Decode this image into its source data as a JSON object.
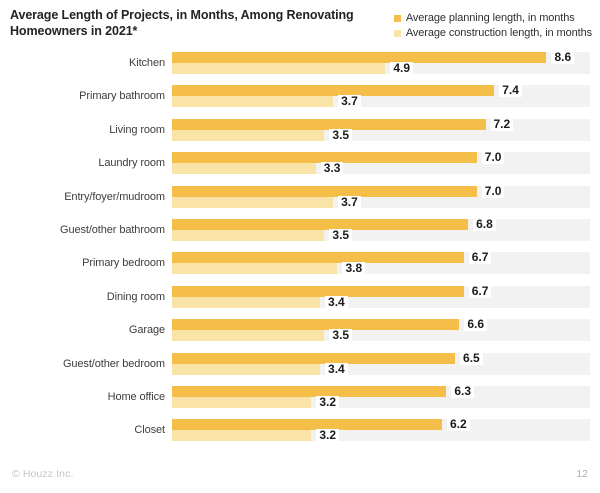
{
  "header": {
    "title_lines": [
      "Average Length of Projects, in Months, Among Renovating",
      "Homeowners in 2021*"
    ]
  },
  "legend": {
    "items": [
      {
        "label": "Average planning length, in months",
        "color": "#f4be48"
      },
      {
        "label": "Average construction length, in months",
        "color": "#fae3a6"
      }
    ]
  },
  "chart_data": {
    "type": "bar",
    "orientation": "horizontal",
    "title": "Average Length of Projects, in Months, Among Renovating Homeowners in 2021*",
    "xlabel": "",
    "ylabel": "",
    "xlim": [
      0,
      9.6
    ],
    "grid": false,
    "legend_position": "top-right",
    "value_labels": "end-of-bar, one decimal, white chip",
    "track_color": "#f2f2f2",
    "categories": [
      "Kitchen",
      "Primary bathroom",
      "Living room",
      "Laundry room",
      "Entry/foyer/mudroom",
      "Guest/other bathroom",
      "Primary bedroom",
      "Dining room",
      "Garage",
      "Guest/other bedroom",
      "Home office",
      "Closet"
    ],
    "series": [
      {
        "name": "Average planning length, in months",
        "color": "#f4be48",
        "values": [
          8.6,
          7.4,
          7.2,
          7.0,
          7.0,
          6.8,
          6.7,
          6.7,
          6.6,
          6.5,
          6.3,
          6.2
        ]
      },
      {
        "name": "Average construction length, in months",
        "color": "#fae3a6",
        "values": [
          4.9,
          3.7,
          3.5,
          3.3,
          3.7,
          3.5,
          3.8,
          3.4,
          3.5,
          3.4,
          3.2,
          3.2
        ]
      }
    ]
  },
  "footer": {
    "copyright": "© Houzz Inc.",
    "page_number": "12"
  }
}
